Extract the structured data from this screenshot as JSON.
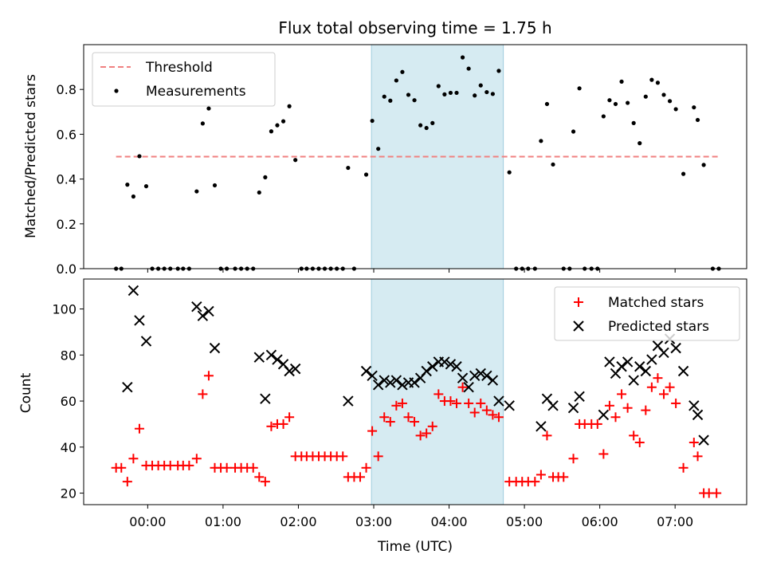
{
  "chart_data": [
    {
      "type": "scatter",
      "title": "Flux total observing time = 1.75 h",
      "xlabel": "",
      "ylabel": "Matched/Predicted stars",
      "x_unit": "hours (UTC, decimal)",
      "xlim": [
        -0.85,
        7.95
      ],
      "ylim": [
        0,
        1.0
      ],
      "yticks": [
        0.0,
        0.2,
        0.4,
        0.6,
        0.8
      ],
      "ytick_labels": [
        "0.0",
        "0.2",
        "0.4",
        "0.6",
        "0.8"
      ],
      "grid": false,
      "legend_position": "upper left",
      "highlight_span": [
        2.97,
        4.72
      ],
      "threshold": {
        "name": "Threshold",
        "y": 0.5,
        "x_range": [
          -0.42,
          7.58
        ],
        "color": "#f08080"
      },
      "series": [
        {
          "name": "Measurements",
          "color": "#000000",
          "marker": "dot",
          "points": [
            [
              -0.42,
              0
            ],
            [
              -0.35,
              0
            ],
            [
              -0.27,
              0.375
            ],
            [
              -0.19,
              0.322
            ],
            [
              -0.11,
              0.502
            ],
            [
              -0.02,
              0.368
            ],
            [
              0.06,
              0
            ],
            [
              0.14,
              0
            ],
            [
              0.22,
              0
            ],
            [
              0.3,
              0
            ],
            [
              0.4,
              0
            ],
            [
              0.47,
              0
            ],
            [
              0.55,
              0
            ],
            [
              0.65,
              0.345
            ],
            [
              0.73,
              0.648
            ],
            [
              0.81,
              0.715
            ],
            [
              0.89,
              0.372
            ],
            [
              0.97,
              0
            ],
            [
              1.05,
              0
            ],
            [
              1.16,
              0
            ],
            [
              1.24,
              0
            ],
            [
              1.32,
              0
            ],
            [
              1.4,
              0
            ],
            [
              1.48,
              0.34
            ],
            [
              1.56,
              0.408
            ],
            [
              1.64,
              0.613
            ],
            [
              1.72,
              0.64
            ],
            [
              1.8,
              0.658
            ],
            [
              1.88,
              0.725
            ],
            [
              1.96,
              0.485
            ],
            [
              2.04,
              0
            ],
            [
              2.11,
              0
            ],
            [
              2.19,
              0
            ],
            [
              2.27,
              0
            ],
            [
              2.35,
              0
            ],
            [
              2.43,
              0
            ],
            [
              2.51,
              0
            ],
            [
              2.59,
              0
            ],
            [
              2.66,
              0.45
            ],
            [
              2.74,
              0
            ],
            [
              2.9,
              0.42
            ],
            [
              2.98,
              0.66
            ],
            [
              3.06,
              0.535
            ],
            [
              3.14,
              0.768
            ],
            [
              3.22,
              0.75
            ],
            [
              3.3,
              0.84
            ],
            [
              3.38,
              0.878
            ],
            [
              3.46,
              0.776
            ],
            [
              3.54,
              0.752
            ],
            [
              3.62,
              0.64
            ],
            [
              3.7,
              0.628
            ],
            [
              3.78,
              0.65
            ],
            [
              3.86,
              0.815
            ],
            [
              3.94,
              0.778
            ],
            [
              4.02,
              0.785
            ],
            [
              4.1,
              0.785
            ],
            [
              4.18,
              0.943
            ],
            [
              4.26,
              0.893
            ],
            [
              4.34,
              0.773
            ],
            [
              4.42,
              0.818
            ],
            [
              4.5,
              0.788
            ],
            [
              4.58,
              0.78
            ],
            [
              4.66,
              0.883
            ],
            [
              4.8,
              0.43
            ],
            [
              4.89,
              0
            ],
            [
              4.97,
              0
            ],
            [
              5.05,
              0
            ],
            [
              5.14,
              0
            ],
            [
              5.22,
              0.57
            ],
            [
              5.3,
              0.735
            ],
            [
              5.38,
              0.465
            ],
            [
              5.52,
              0
            ],
            [
              5.6,
              0
            ],
            [
              5.65,
              0.612
            ],
            [
              5.73,
              0.805
            ],
            [
              5.8,
              0
            ],
            [
              5.89,
              0
            ],
            [
              5.97,
              0
            ],
            [
              6.05,
              0.68
            ],
            [
              6.13,
              0.752
            ],
            [
              6.21,
              0.735
            ],
            [
              6.29,
              0.835
            ],
            [
              6.37,
              0.74
            ],
            [
              6.45,
              0.65
            ],
            [
              6.53,
              0.56
            ],
            [
              6.61,
              0.768
            ],
            [
              6.69,
              0.843
            ],
            [
              6.77,
              0.83
            ],
            [
              6.85,
              0.776
            ],
            [
              6.93,
              0.748
            ],
            [
              7.01,
              0.712
            ],
            [
              7.11,
              0.423
            ],
            [
              7.25,
              0.72
            ],
            [
              7.3,
              0.664
            ],
            [
              7.38,
              0.463
            ],
            [
              7.5,
              0
            ],
            [
              7.58,
              0
            ]
          ]
        }
      ]
    },
    {
      "type": "scatter",
      "title": "",
      "xlabel": "Time (UTC)",
      "ylabel": "Count",
      "x_unit": "hours (UTC, decimal)",
      "xlim": [
        -0.85,
        7.95
      ],
      "ylim": [
        15,
        113
      ],
      "yticks": [
        20,
        40,
        60,
        80,
        100
      ],
      "ytick_labels": [
        "20",
        "40",
        "60",
        "80",
        "100"
      ],
      "xticks": [
        0,
        1,
        2,
        3,
        4,
        5,
        6,
        7
      ],
      "xtick_labels": [
        "00:00",
        "01:00",
        "02:00",
        "03:00",
        "04:00",
        "05:00",
        "06:00",
        "07:00"
      ],
      "grid": false,
      "legend_position": "upper right",
      "highlight_span": [
        2.97,
        4.72
      ],
      "series": [
        {
          "name": "Matched stars",
          "color": "#ff0000",
          "marker": "plus",
          "points": [
            [
              -0.42,
              31
            ],
            [
              -0.35,
              31
            ],
            [
              -0.27,
              25
            ],
            [
              -0.19,
              35
            ],
            [
              -0.11,
              48
            ],
            [
              -0.02,
              32
            ],
            [
              0.06,
              32
            ],
            [
              0.14,
              32
            ],
            [
              0.22,
              32
            ],
            [
              0.3,
              32
            ],
            [
              0.4,
              32
            ],
            [
              0.47,
              32
            ],
            [
              0.55,
              32
            ],
            [
              0.65,
              35
            ],
            [
              0.73,
              63
            ],
            [
              0.81,
              71
            ],
            [
              0.89,
              31
            ],
            [
              0.97,
              31
            ],
            [
              1.05,
              31
            ],
            [
              1.16,
              31
            ],
            [
              1.24,
              31
            ],
            [
              1.32,
              31
            ],
            [
              1.4,
              31
            ],
            [
              1.48,
              27
            ],
            [
              1.56,
              25
            ],
            [
              1.64,
              49
            ],
            [
              1.72,
              50
            ],
            [
              1.8,
              50
            ],
            [
              1.88,
              53
            ],
            [
              1.96,
              36
            ],
            [
              2.04,
              36
            ],
            [
              2.11,
              36
            ],
            [
              2.19,
              36
            ],
            [
              2.27,
              36
            ],
            [
              2.35,
              36
            ],
            [
              2.43,
              36
            ],
            [
              2.51,
              36
            ],
            [
              2.59,
              36
            ],
            [
              2.66,
              27
            ],
            [
              2.74,
              27
            ],
            [
              2.82,
              27
            ],
            [
              2.9,
              31
            ],
            [
              2.98,
              47
            ],
            [
              3.06,
              36
            ],
            [
              3.14,
              53
            ],
            [
              3.22,
              51
            ],
            [
              3.3,
              58
            ],
            [
              3.38,
              59
            ],
            [
              3.46,
              53
            ],
            [
              3.54,
              51
            ],
            [
              3.62,
              45
            ],
            [
              3.7,
              46
            ],
            [
              3.78,
              49
            ],
            [
              3.86,
              63
            ],
            [
              3.94,
              60
            ],
            [
              4.02,
              60
            ],
            [
              4.1,
              59
            ],
            [
              4.18,
              66
            ],
            [
              4.26,
              59
            ],
            [
              4.34,
              55
            ],
            [
              4.42,
              59
            ],
            [
              4.5,
              56
            ],
            [
              4.58,
              54
            ],
            [
              4.66,
              53
            ],
            [
              4.8,
              25
            ],
            [
              4.89,
              25
            ],
            [
              4.97,
              25
            ],
            [
              5.05,
              25
            ],
            [
              5.14,
              25
            ],
            [
              5.22,
              28
            ],
            [
              5.3,
              45
            ],
            [
              5.38,
              27
            ],
            [
              5.45,
              27
            ],
            [
              5.52,
              27
            ],
            [
              5.65,
              35
            ],
            [
              5.73,
              50
            ],
            [
              5.8,
              50
            ],
            [
              5.89,
              50
            ],
            [
              5.97,
              50
            ],
            [
              6.05,
              37
            ],
            [
              6.13,
              58
            ],
            [
              6.21,
              53
            ],
            [
              6.29,
              63
            ],
            [
              6.37,
              57
            ],
            [
              6.45,
              45
            ],
            [
              6.53,
              42
            ],
            [
              6.61,
              56
            ],
            [
              6.69,
              66
            ],
            [
              6.77,
              70
            ],
            [
              6.85,
              63
            ],
            [
              6.93,
              66
            ],
            [
              7.01,
              59
            ],
            [
              7.11,
              31
            ],
            [
              7.25,
              42
            ],
            [
              7.3,
              36
            ],
            [
              7.38,
              20
            ],
            [
              7.45,
              20
            ],
            [
              7.55,
              20
            ]
          ]
        },
        {
          "name": "Predicted stars",
          "color": "#000000",
          "marker": "x",
          "points": [
            [
              -0.27,
              66
            ],
            [
              -0.19,
              108
            ],
            [
              -0.11,
              95
            ],
            [
              -0.02,
              86
            ],
            [
              0.65,
              101
            ],
            [
              0.73,
              97
            ],
            [
              0.81,
              99
            ],
            [
              0.89,
              83
            ],
            [
              1.48,
              79
            ],
            [
              1.56,
              61
            ],
            [
              1.64,
              80
            ],
            [
              1.72,
              78
            ],
            [
              1.8,
              76
            ],
            [
              1.88,
              73
            ],
            [
              1.96,
              74
            ],
            [
              2.66,
              60
            ],
            [
              2.9,
              73
            ],
            [
              2.98,
              71
            ],
            [
              3.06,
              67
            ],
            [
              3.14,
              69
            ],
            [
              3.22,
              68
            ],
            [
              3.3,
              69
            ],
            [
              3.38,
              67
            ],
            [
              3.46,
              68
            ],
            [
              3.54,
              68
            ],
            [
              3.62,
              70
            ],
            [
              3.7,
              73
            ],
            [
              3.78,
              75
            ],
            [
              3.86,
              77
            ],
            [
              3.94,
              77
            ],
            [
              4.02,
              76
            ],
            [
              4.1,
              75
            ],
            [
              4.18,
              70
            ],
            [
              4.26,
              66
            ],
            [
              4.34,
              71
            ],
            [
              4.42,
              72
            ],
            [
              4.5,
              71
            ],
            [
              4.58,
              69
            ],
            [
              4.66,
              60
            ],
            [
              4.8,
              58
            ],
            [
              5.22,
              49
            ],
            [
              5.3,
              61
            ],
            [
              5.38,
              58
            ],
            [
              5.65,
              57
            ],
            [
              5.73,
              62
            ],
            [
              6.05,
              54
            ],
            [
              6.13,
              77
            ],
            [
              6.21,
              72
            ],
            [
              6.29,
              75
            ],
            [
              6.37,
              77
            ],
            [
              6.45,
              69
            ],
            [
              6.53,
              75
            ],
            [
              6.61,
              73
            ],
            [
              6.69,
              78
            ],
            [
              6.77,
              84
            ],
            [
              6.85,
              81
            ],
            [
              6.93,
              87
            ],
            [
              7.01,
              83
            ],
            [
              7.11,
              73
            ],
            [
              7.25,
              58
            ],
            [
              7.3,
              54
            ],
            [
              7.38,
              43
            ]
          ]
        }
      ]
    }
  ]
}
